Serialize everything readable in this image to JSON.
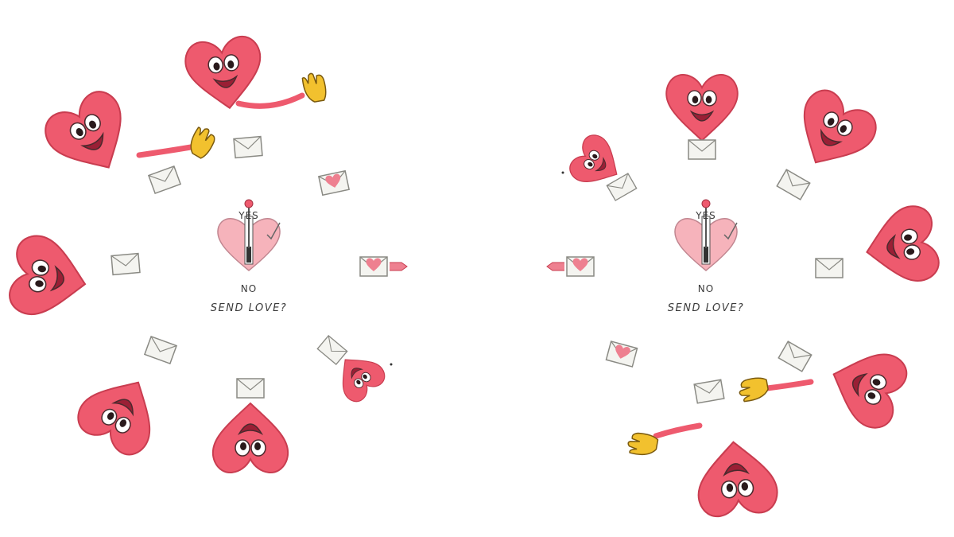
{
  "left_panel": {
    "switch": {
      "yes_label": "YES",
      "no_label": "NO",
      "prompt": "SEND LOVE?"
    }
  },
  "right_panel": {
    "switch": {
      "yes_label": "YES",
      "no_label": "NO",
      "prompt": "SEND LOVE?"
    }
  },
  "colors": {
    "heart": "#ee5a6e",
    "heart_dark": "#c93d50",
    "heart_light": "#f6b3bb",
    "glove": "#f2c12e",
    "envelope": "#f4f4f0",
    "outline": "#4a2a2e"
  }
}
